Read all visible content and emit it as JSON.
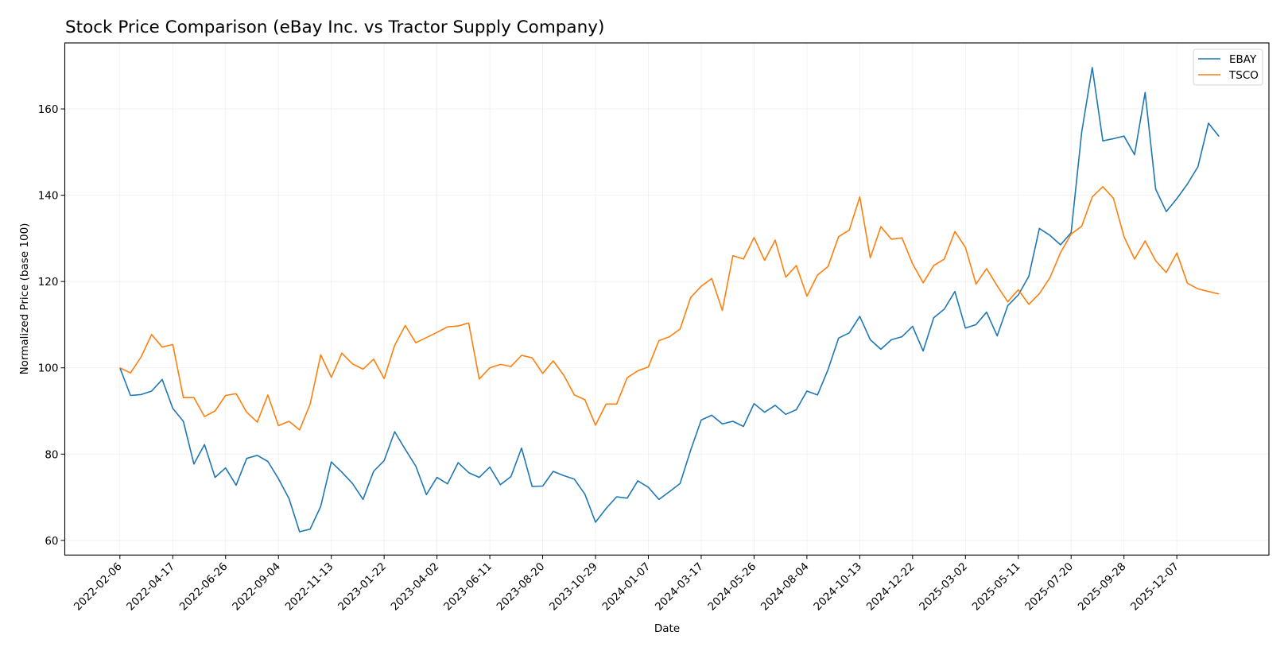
{
  "chart_data": {
    "type": "line",
    "title": "Stock Price Comparison (eBay Inc. vs Tractor Supply Company)",
    "xlabel": "Date",
    "ylabel": "Normalized Price (base 100)",
    "xlim": [
      "2021-11-25",
      "2026-04-08"
    ],
    "ylim": [
      56.6,
      175.3
    ],
    "grid": true,
    "legend_position": "top-right",
    "x_ticks": [
      "2022-02-06",
      "2022-04-17",
      "2022-06-26",
      "2022-09-04",
      "2022-11-13",
      "2023-01-22",
      "2023-04-02",
      "2023-06-11",
      "2023-08-20",
      "2023-10-29",
      "2024-01-07",
      "2024-03-17",
      "2024-05-26",
      "2024-08-04",
      "2024-10-13",
      "2024-12-22",
      "2025-03-02",
      "2025-05-11",
      "2025-07-20",
      "2025-09-28",
      "2025-12-07"
    ],
    "y_ticks": [
      60,
      80,
      100,
      120,
      140,
      160
    ],
    "x": [
      "2022-02-06",
      "2022-02-20",
      "2022-03-06",
      "2022-03-20",
      "2022-04-03",
      "2022-04-17",
      "2022-05-01",
      "2022-05-15",
      "2022-05-29",
      "2022-06-12",
      "2022-06-26",
      "2022-07-10",
      "2022-07-24",
      "2022-08-07",
      "2022-08-21",
      "2022-09-04",
      "2022-09-18",
      "2022-10-02",
      "2022-10-16",
      "2022-10-30",
      "2022-11-13",
      "2022-11-27",
      "2022-12-11",
      "2022-12-25",
      "2023-01-08",
      "2023-01-22",
      "2023-02-05",
      "2023-02-19",
      "2023-03-05",
      "2023-03-19",
      "2023-04-02",
      "2023-04-16",
      "2023-04-30",
      "2023-05-14",
      "2023-05-28",
      "2023-06-11",
      "2023-06-25",
      "2023-07-09",
      "2023-07-23",
      "2023-08-06",
      "2023-08-20",
      "2023-09-03",
      "2023-09-17",
      "2023-10-01",
      "2023-10-15",
      "2023-10-29",
      "2023-11-12",
      "2023-11-26",
      "2023-12-10",
      "2023-12-24",
      "2024-01-07",
      "2024-01-21",
      "2024-02-04",
      "2024-02-18",
      "2024-03-03",
      "2024-03-17",
      "2024-03-31",
      "2024-04-14",
      "2024-04-28",
      "2024-05-12",
      "2024-05-26",
      "2024-06-09",
      "2024-06-23",
      "2024-07-07",
      "2024-07-21",
      "2024-08-04",
      "2024-08-18",
      "2024-09-01",
      "2024-09-15",
      "2024-09-29",
      "2024-10-13",
      "2024-10-27",
      "2024-11-10",
      "2024-11-24",
      "2024-12-08",
      "2024-12-22",
      "2025-01-05",
      "2025-01-19",
      "2025-02-02",
      "2025-02-16",
      "2025-03-02",
      "2025-03-16",
      "2025-03-30",
      "2025-04-13",
      "2025-04-27",
      "2025-05-11",
      "2025-05-25",
      "2025-06-08",
      "2025-06-22",
      "2025-07-06",
      "2025-07-20",
      "2025-08-03",
      "2025-08-17",
      "2025-08-31",
      "2025-09-14",
      "2025-09-28",
      "2025-10-12",
      "2025-10-26",
      "2025-11-09",
      "2025-11-23",
      "2025-12-07",
      "2025-12-21",
      "2026-01-04",
      "2026-01-18",
      "2026-02-01"
    ],
    "series": [
      {
        "name": "EBAY",
        "color": "#1f77b4",
        "values": [
          100,
          93.6,
          93.8,
          94.6,
          97.3,
          90.6,
          87.6,
          77.7,
          82.2,
          74.6,
          76.8,
          72.8,
          79.0,
          79.7,
          78.3,
          74.3,
          69.7,
          62.0,
          62.6,
          67.9,
          78.2,
          75.8,
          73.2,
          69.5,
          76.0,
          78.5,
          85.2,
          81.1,
          77.2,
          70.6,
          74.6,
          73.1,
          78.0,
          75.7,
          74.6,
          77.0,
          72.9,
          74.8,
          81.4,
          72.5,
          72.6,
          76.0,
          75.0,
          74.2,
          70.7,
          64.2,
          67.4,
          70.1,
          69.8,
          73.8,
          72.3,
          69.5,
          71.3,
          73.2,
          80.9,
          87.9,
          89.0,
          87.0,
          87.6,
          86.4,
          91.7,
          89.7,
          91.3,
          89.2,
          90.3,
          94.6,
          93.7,
          99.6,
          106.9,
          108.1,
          111.9,
          106.5,
          104.3,
          106.5,
          107.2,
          109.6,
          103.9,
          111.6,
          113.6,
          117.7,
          109.2,
          110.0,
          112.9,
          107.4,
          114.4,
          116.9,
          121.2,
          132.3,
          130.7,
          128.5,
          131.3,
          154.6,
          169.6,
          152.6,
          153.1,
          153.7,
          149.4,
          163.8,
          141.4,
          136.2,
          139.2,
          142.6,
          146.6,
          156.7,
          153.6
        ]
      },
      {
        "name": "TSCO",
        "color": "#ff7f0e",
        "values": [
          100,
          98.8,
          102.5,
          107.7,
          104.8,
          105.4,
          93.1,
          93.1,
          88.7,
          90.0,
          93.6,
          94.0,
          89.7,
          87.4,
          93.7,
          86.6,
          87.6,
          85.6,
          91.6,
          103.0,
          97.8,
          103.4,
          100.9,
          99.7,
          102.0,
          97.5,
          105.2,
          109.8,
          105.8,
          107.0,
          108.2,
          109.5,
          109.7,
          110.4,
          97.4,
          100.0,
          100.8,
          100.3,
          102.9,
          102.3,
          98.7,
          101.6,
          98.3,
          93.7,
          92.6,
          86.7,
          91.6,
          91.6,
          97.7,
          99.3,
          100.2,
          106.3,
          107.2,
          109.0,
          116.3,
          118.9,
          120.7,
          113.3,
          126.0,
          125.2,
          130.2,
          124.9,
          129.6,
          121.0,
          123.7,
          116.6,
          121.5,
          123.5,
          130.4,
          131.9,
          139.6,
          125.5,
          132.7,
          129.8,
          130.1,
          124.1,
          119.7,
          123.7,
          125.2,
          131.6,
          127.9,
          119.4,
          123.0,
          119.0,
          115.3,
          118.1,
          114.7,
          117.2,
          120.9,
          126.7,
          131.0,
          132.8,
          139.6,
          142.0,
          139.3,
          130.4,
          125.2,
          129.4,
          124.8,
          122.1,
          126.6,
          119.6,
          118.3,
          117.7,
          117.1
        ]
      }
    ]
  }
}
